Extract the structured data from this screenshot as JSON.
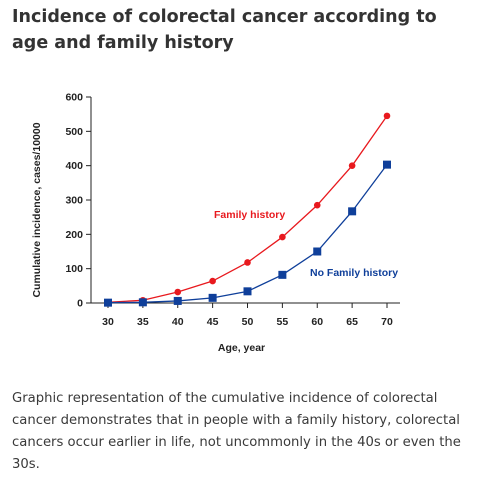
{
  "header": {
    "title": "Incidence of colorectal cancer according to age and family history"
  },
  "caption": "Graphic representation of the cumulative incidence of colorectal cancer demonstrates that in people with a family history, colorectal cancers occur earlier in life, not uncommonly in the 40s or even the 30s.",
  "chart_data": {
    "type": "line",
    "title": "",
    "xlabel": "Age, year",
    "ylabel": "Cumulative incidence, cases/10000",
    "x": [
      30,
      35,
      40,
      45,
      50,
      55,
      60,
      65,
      70
    ],
    "xlim": [
      30,
      70
    ],
    "ylim": [
      0,
      600
    ],
    "yticks": [
      0,
      100,
      200,
      300,
      400,
      500,
      600
    ],
    "grid": false,
    "series": [
      {
        "name": "Family history",
        "color": "#e8191e",
        "marker": "circle",
        "values": [
          2,
          8,
          32,
          64,
          118,
          192,
          285,
          400,
          545
        ]
      },
      {
        "name": "No Family history",
        "color": "#0f3f9a",
        "marker": "square",
        "values": [
          1,
          2,
          6,
          15,
          34,
          82,
          150,
          267,
          403
        ]
      }
    ]
  }
}
